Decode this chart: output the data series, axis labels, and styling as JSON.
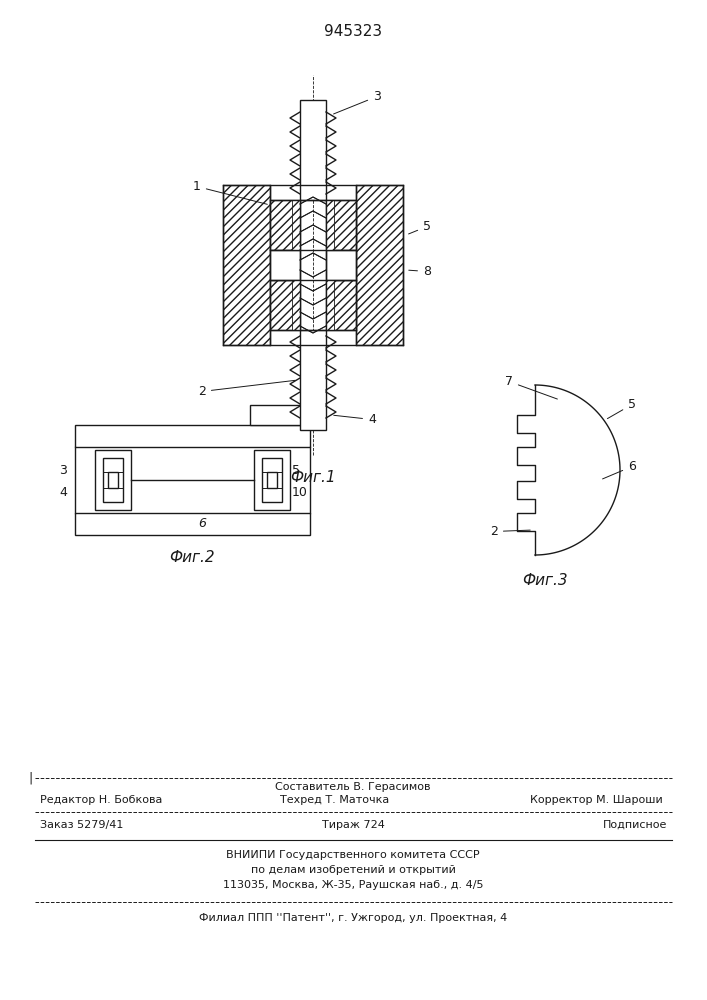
{
  "patent_number": "945323",
  "fig1_caption": "Фиг.1",
  "fig2_caption": "Фиг.2",
  "fig3_caption": "Фиг.3",
  "lc": "#1a1a1a",
  "footer_sestavitel": "Составитель В. Герасимов",
  "footer_redaktor": "Редактор Н. Бобкова",
  "footer_tehred": "Техред Т. Маточка",
  "footer_korrektor": "Корректор М. Шароши",
  "footer_zakaz": "Заказ 5279/41",
  "footer_tirazh": "Тираж 724",
  "footer_podpisnoe": "Подписное",
  "footer_vniiipi": "ВНИИПИ Государственного комитета СССР",
  "footer_po_delam": "по делам изобретений и открытий",
  "footer_address": "113035, Москва, Ж-35, Раушская наб., д. 4/5",
  "footer_filial": "Филиал ППП ''Патент'', г. Ужгород, ул. Проектная, 4"
}
